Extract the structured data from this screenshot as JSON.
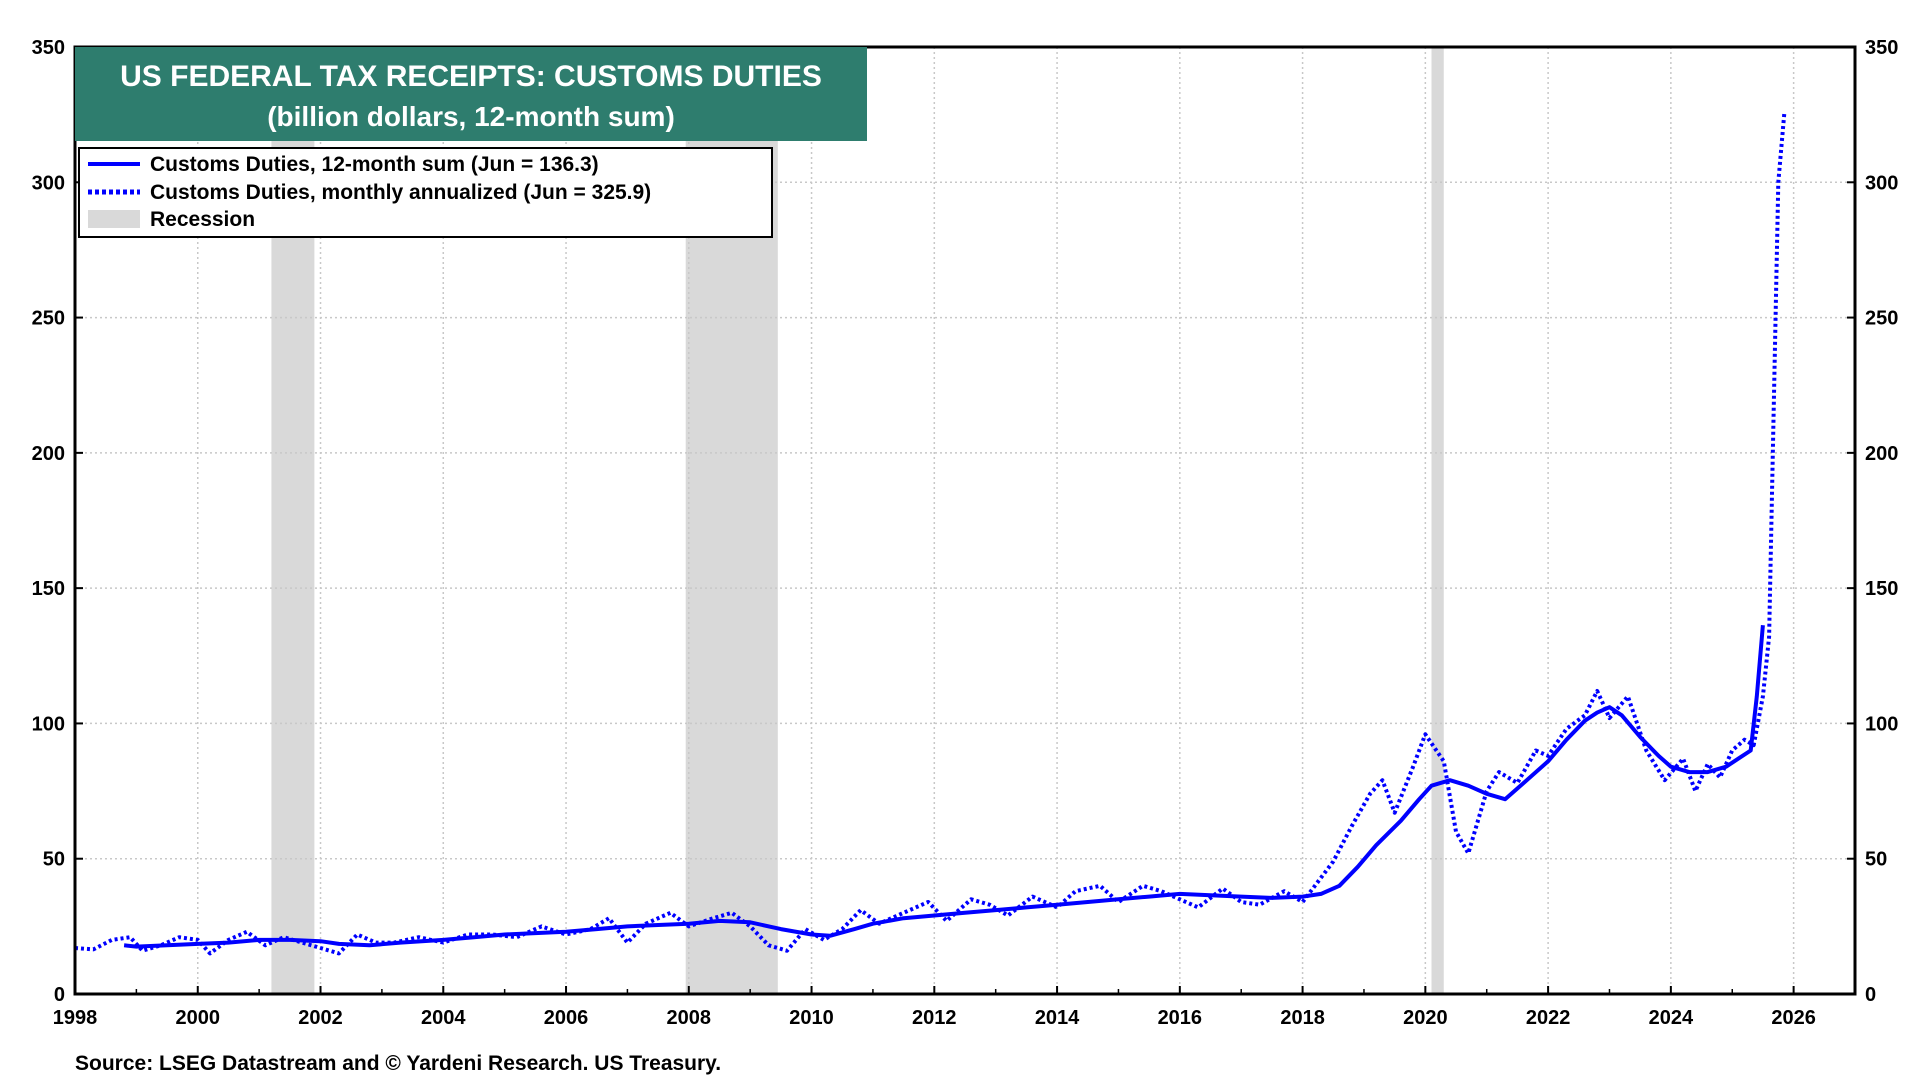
{
  "chart_data": {
    "type": "line",
    "title": "US FEDERAL TAX RECEIPTS: CUSTOMS DUTIES",
    "subtitle": "(billion dollars, 12-month sum)",
    "xlim": [
      1998,
      2027
    ],
    "ylim": [
      0,
      350
    ],
    "x_ticks": [
      1998,
      2000,
      2002,
      2004,
      2006,
      2008,
      2010,
      2012,
      2014,
      2016,
      2018,
      2020,
      2022,
      2024,
      2026
    ],
    "x_tick_labels": [
      "1998",
      "2000",
      "2002",
      "2004",
      "2006",
      "2008",
      "2010",
      "2012",
      "2014",
      "2016",
      "2018",
      "2020",
      "2022",
      "2024",
      "2026"
    ],
    "y_ticks": [
      0,
      50,
      100,
      150,
      200,
      250,
      300,
      350
    ],
    "y_tick_labels": [
      "0",
      "50",
      "100",
      "150",
      "200",
      "250",
      "300",
      "350"
    ],
    "grid": true,
    "legend_position": "top-left",
    "recessions": [
      [
        2001.2,
        2001.9
      ],
      [
        2007.95,
        2009.45
      ],
      [
        2020.1,
        2020.3
      ]
    ],
    "colors": {
      "series": "#0000ff",
      "recession": "#d9d9d9",
      "title_bg": "#2e7d6e"
    },
    "legend": [
      {
        "label": "Customs Duties, 12-month sum (Jun = 136.3)",
        "style": "solid"
      },
      {
        "label": "Customs Duties, monthly annualized (Jun = 325.9)",
        "style": "dotted"
      },
      {
        "label": "Recession",
        "style": "band"
      }
    ],
    "series": [
      {
        "name": "Customs Duties, 12-month sum (Jun = 136.3)",
        "style": "solid",
        "points": [
          [
            1998.8,
            18
          ],
          [
            1999.0,
            17.5
          ],
          [
            1999.5,
            18
          ],
          [
            2000.0,
            18.5
          ],
          [
            2000.5,
            19
          ],
          [
            2001.0,
            20
          ],
          [
            2001.5,
            20
          ],
          [
            2002.0,
            19.5
          ],
          [
            2002.3,
            18.5
          ],
          [
            2002.8,
            18
          ],
          [
            2003.3,
            19
          ],
          [
            2004.0,
            20
          ],
          [
            2004.5,
            21
          ],
          [
            2005.0,
            22
          ],
          [
            2005.5,
            22.5
          ],
          [
            2006.0,
            23
          ],
          [
            2006.5,
            24
          ],
          [
            2007.0,
            25
          ],
          [
            2007.5,
            25.5
          ],
          [
            2008.0,
            26
          ],
          [
            2008.5,
            27
          ],
          [
            2009.0,
            26.5
          ],
          [
            2009.5,
            24
          ],
          [
            2010.0,
            22
          ],
          [
            2010.3,
            21.5
          ],
          [
            2010.7,
            24
          ],
          [
            2011.0,
            26
          ],
          [
            2011.5,
            28
          ],
          [
            2012.0,
            29
          ],
          [
            2012.5,
            30
          ],
          [
            2013.0,
            31
          ],
          [
            2013.5,
            32
          ],
          [
            2014.0,
            33
          ],
          [
            2014.5,
            34
          ],
          [
            2015.0,
            35
          ],
          [
            2015.5,
            36
          ],
          [
            2016.0,
            37
          ],
          [
            2016.5,
            36.5
          ],
          [
            2017.0,
            36
          ],
          [
            2017.5,
            35.5
          ],
          [
            2018.0,
            36
          ],
          [
            2018.3,
            37
          ],
          [
            2018.6,
            40
          ],
          [
            2018.9,
            47
          ],
          [
            2019.2,
            55
          ],
          [
            2019.6,
            64
          ],
          [
            2019.9,
            72
          ],
          [
            2020.1,
            77
          ],
          [
            2020.4,
            79
          ],
          [
            2020.7,
            77
          ],
          [
            2021.0,
            74
          ],
          [
            2021.3,
            72
          ],
          [
            2021.6,
            78
          ],
          [
            2022.0,
            86
          ],
          [
            2022.3,
            94
          ],
          [
            2022.6,
            101
          ],
          [
            2022.8,
            104
          ],
          [
            2023.0,
            106
          ],
          [
            2023.2,
            103
          ],
          [
            2023.5,
            95
          ],
          [
            2023.8,
            88
          ],
          [
            2024.0,
            84
          ],
          [
            2024.3,
            82
          ],
          [
            2024.6,
            82
          ],
          [
            2024.9,
            84
          ],
          [
            2025.1,
            87
          ],
          [
            2025.3,
            90
          ],
          [
            2025.4,
            110
          ],
          [
            2025.5,
            136.3
          ]
        ]
      },
      {
        "name": "Customs Duties, monthly annualized (Jun = 325.9)",
        "style": "dotted",
        "points": [
          [
            1998.0,
            17
          ],
          [
            1998.3,
            16.5
          ],
          [
            1998.6,
            20
          ],
          [
            1998.9,
            21
          ],
          [
            1999.1,
            16
          ],
          [
            1999.4,
            18
          ],
          [
            1999.7,
            21
          ],
          [
            2000.0,
            20
          ],
          [
            2000.2,
            15
          ],
          [
            2000.5,
            20
          ],
          [
            2000.8,
            23
          ],
          [
            2001.1,
            18
          ],
          [
            2001.4,
            21
          ],
          [
            2001.7,
            19
          ],
          [
            2002.0,
            17
          ],
          [
            2002.3,
            15
          ],
          [
            2002.6,
            22
          ],
          [
            2002.9,
            19
          ],
          [
            2003.2,
            19
          ],
          [
            2003.6,
            21
          ],
          [
            2004.0,
            19
          ],
          [
            2004.4,
            22
          ],
          [
            2004.8,
            22
          ],
          [
            2005.2,
            21
          ],
          [
            2005.6,
            25
          ],
          [
            2006.0,
            22
          ],
          [
            2006.4,
            24
          ],
          [
            2006.7,
            28
          ],
          [
            2007.0,
            19
          ],
          [
            2007.3,
            26
          ],
          [
            2007.7,
            30
          ],
          [
            2008.0,
            25
          ],
          [
            2008.4,
            28
          ],
          [
            2008.7,
            30
          ],
          [
            2009.0,
            25
          ],
          [
            2009.3,
            18
          ],
          [
            2009.6,
            16
          ],
          [
            2009.9,
            24
          ],
          [
            2010.2,
            20
          ],
          [
            2010.5,
            24
          ],
          [
            2010.8,
            31
          ],
          [
            2011.1,
            26
          ],
          [
            2011.5,
            30
          ],
          [
            2011.9,
            34
          ],
          [
            2012.2,
            27
          ],
          [
            2012.6,
            35
          ],
          [
            2012.9,
            33
          ],
          [
            2013.2,
            29
          ],
          [
            2013.6,
            36
          ],
          [
            2014.0,
            32
          ],
          [
            2014.3,
            38
          ],
          [
            2014.7,
            40
          ],
          [
            2015.0,
            34
          ],
          [
            2015.4,
            40
          ],
          [
            2015.7,
            38
          ],
          [
            2016.0,
            35
          ],
          [
            2016.3,
            32
          ],
          [
            2016.7,
            39
          ],
          [
            2017.0,
            34
          ],
          [
            2017.3,
            33
          ],
          [
            2017.7,
            38
          ],
          [
            2018.0,
            34
          ],
          [
            2018.2,
            40
          ],
          [
            2018.5,
            49
          ],
          [
            2018.8,
            62
          ],
          [
            2019.1,
            74
          ],
          [
            2019.3,
            79
          ],
          [
            2019.5,
            67
          ],
          [
            2019.8,
            84
          ],
          [
            2020.0,
            96
          ],
          [
            2020.3,
            86
          ],
          [
            2020.5,
            60
          ],
          [
            2020.7,
            52
          ],
          [
            2021.0,
            75
          ],
          [
            2021.2,
            82
          ],
          [
            2021.5,
            78
          ],
          [
            2021.8,
            90
          ],
          [
            2022.0,
            88
          ],
          [
            2022.3,
            98
          ],
          [
            2022.6,
            103
          ],
          [
            2022.8,
            112
          ],
          [
            2023.0,
            102
          ],
          [
            2023.3,
            110
          ],
          [
            2023.6,
            90
          ],
          [
            2023.9,
            79
          ],
          [
            2024.2,
            87
          ],
          [
            2024.4,
            75
          ],
          [
            2024.6,
            85
          ],
          [
            2024.8,
            80
          ],
          [
            2025.0,
            90
          ],
          [
            2025.2,
            94
          ],
          [
            2025.35,
            92
          ],
          [
            2025.5,
            110
          ],
          [
            2025.6,
            132
          ],
          [
            2025.75,
            300
          ],
          [
            2025.85,
            325.9
          ]
        ]
      }
    ],
    "source": "Source: LSEG Datastream and © Yardeni Research. US Treasury."
  }
}
